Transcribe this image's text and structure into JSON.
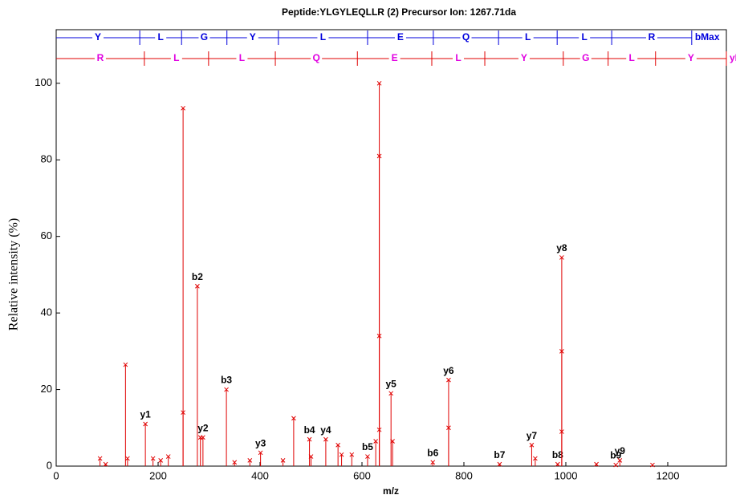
{
  "chart_data": {
    "type": "spectrum",
    "title": "Peptide:YLGYLEQLLR (2)  Precursor Ion: 1267.71da",
    "x_label": "m/z",
    "y_label": "Relative intensity (%)",
    "xlim": [
      0,
      1315
    ],
    "ylim": [
      0,
      114
    ],
    "xticks": [
      0,
      200,
      400,
      600,
      800,
      1000,
      1200
    ],
    "yticks": [
      0,
      20,
      40,
      60,
      80,
      100
    ],
    "color": "#e00000",
    "x": [
      86,
      97,
      136,
      140,
      175,
      190,
      205,
      220,
      249,
      249,
      277,
      283,
      288,
      334,
      350,
      380,
      401,
      445,
      466,
      497,
      500,
      529,
      553,
      560,
      580,
      611,
      627,
      634,
      634,
      634,
      634,
      657,
      660,
      739,
      770,
      770,
      870,
      933,
      940,
      984,
      992,
      992,
      992,
      1060,
      1098,
      1106,
      1170
    ],
    "values": [
      2,
      0.5,
      26.5,
      2,
      11,
      2,
      1.5,
      2.5,
      93.5,
      14,
      47,
      7.5,
      7.5,
      20,
      1,
      1.5,
      3.5,
      1.5,
      12.5,
      7,
      2.5,
      7,
      5.5,
      3,
      3,
      2.5,
      6.5,
      100,
      81,
      34,
      9.5,
      19,
      6.5,
      1,
      22.5,
      10,
      0.5,
      5.5,
      2,
      0.5,
      54.5,
      30,
      9,
      0.5,
      0.3,
      1.5,
      0.3
    ],
    "labels": [
      null,
      null,
      null,
      null,
      "y1",
      null,
      null,
      null,
      null,
      null,
      "b2",
      null,
      "y2",
      "b3",
      null,
      null,
      "y3",
      null,
      null,
      "b4",
      null,
      "y4",
      null,
      null,
      null,
      "b5",
      null,
      null,
      null,
      null,
      null,
      "y5",
      null,
      "b6",
      "y6",
      null,
      "b7",
      "y7",
      null,
      "b8",
      "y8",
      null,
      null,
      null,
      "b9",
      "y9",
      null
    ],
    "ladders": [
      {
        "name": "bMax",
        "color": "#0000dd",
        "text_color": "#0000dd",
        "ticks": [
          0,
          164,
          246,
          335,
          436,
          611,
          740,
          868,
          983,
          1090,
          1247
        ],
        "residues": [
          "Y",
          "L",
          "G",
          "Y",
          "L",
          "E",
          "Q",
          "L",
          "L",
          "R"
        ]
      },
      {
        "name": "yMax",
        "color": "#e00000",
        "text_color": "#e000e0",
        "ticks": [
          0,
          173,
          299,
          430,
          591,
          737,
          841,
          995,
          1083,
          1176,
          1315
        ],
        "residues": [
          "R",
          "L",
          "L",
          "Q",
          "E",
          "L",
          "Y",
          "G",
          "L",
          "Y"
        ]
      }
    ]
  }
}
